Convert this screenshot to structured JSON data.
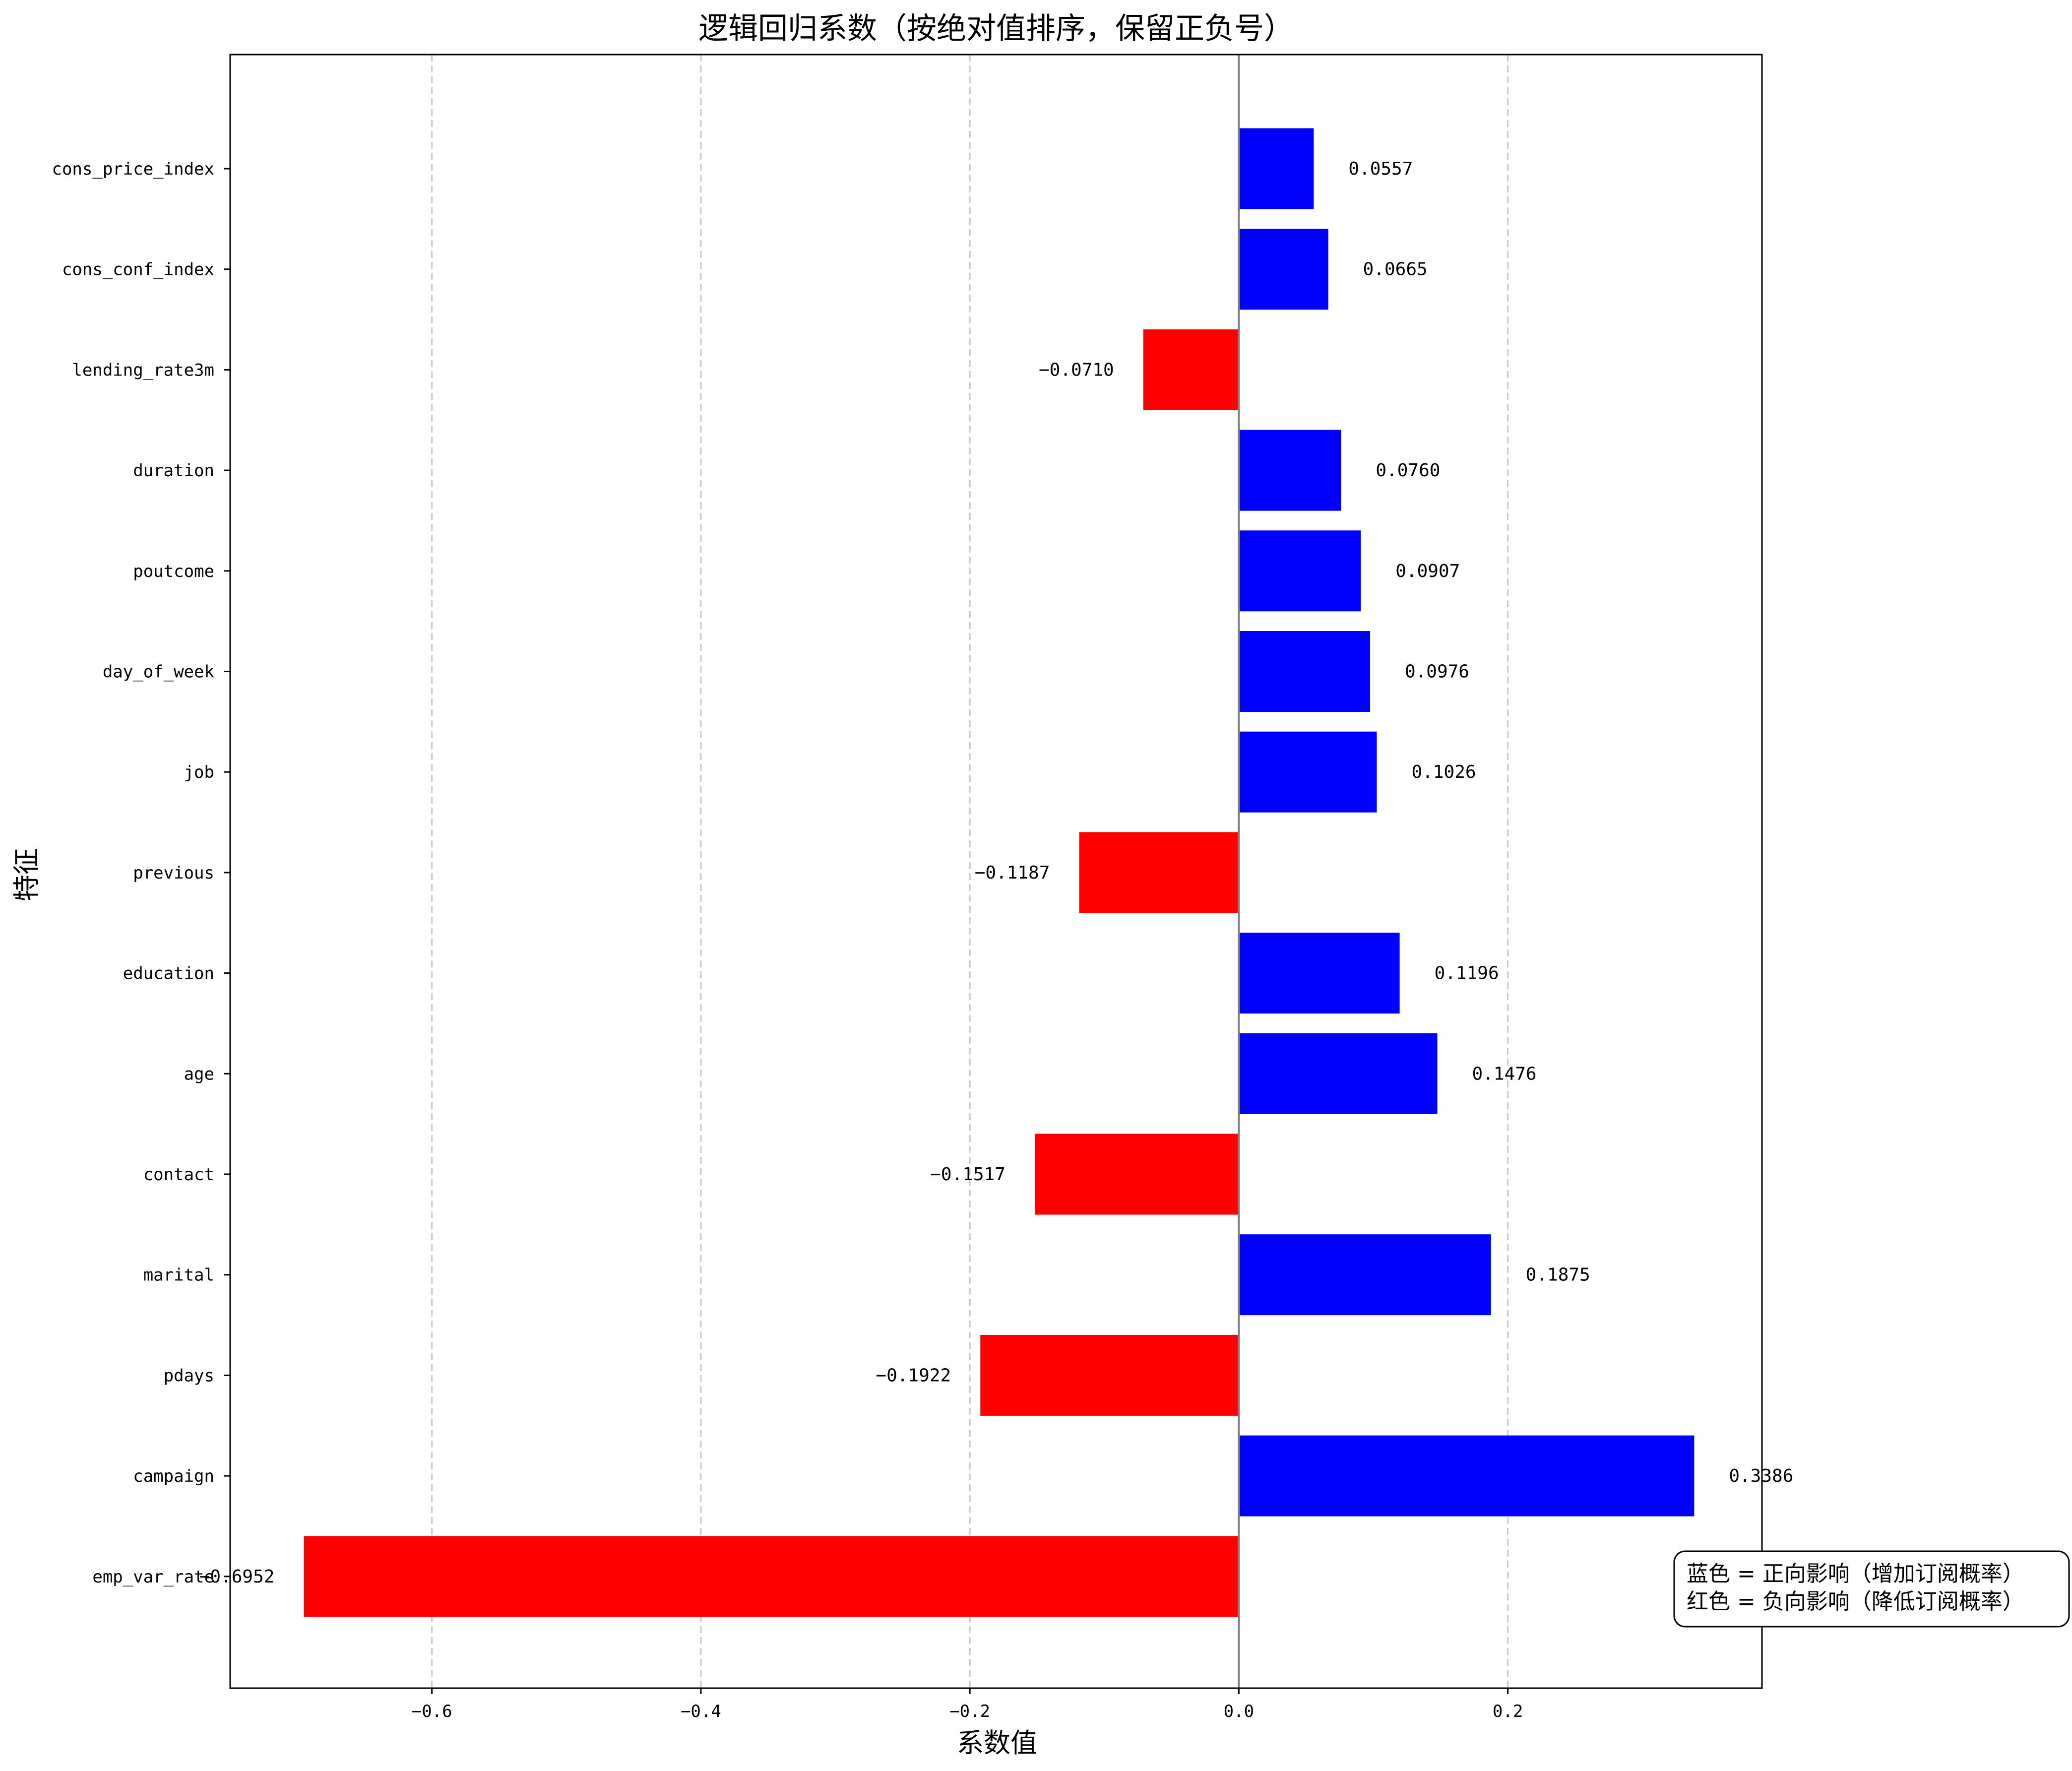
{
  "chart_data": {
    "type": "bar",
    "orientation": "horizontal",
    "title": "逻辑回归系数（按绝对值排序，保留正负号）",
    "xlabel": "系数值",
    "ylabel": "特征",
    "xlim": [
      -0.75,
      0.389
    ],
    "xticks": [
      -0.6,
      -0.4,
      -0.2,
      0.0,
      0.2
    ],
    "xtick_labels": [
      "−0.6",
      "−0.4",
      "−0.2",
      "0.0",
      "0.2"
    ],
    "grid": "x-dashed",
    "colors": {
      "positive": "#0000ff",
      "negative": "#ff0000",
      "zero_line": "#808080",
      "grid": "#c8c8c8"
    },
    "categories": [
      "cons_price_index",
      "cons_conf_index",
      "lending_rate3m",
      "duration",
      "poutcome",
      "day_of_week",
      "job",
      "previous",
      "education",
      "age",
      "contact",
      "marital",
      "pdays",
      "campaign",
      "emp_var_rate"
    ],
    "values": [
      0.0557,
      0.0665,
      -0.071,
      0.076,
      0.0907,
      0.0976,
      0.1026,
      -0.1187,
      0.1196,
      0.1476,
      -0.1517,
      0.1875,
      -0.1922,
      0.3386,
      -0.6952
    ],
    "value_labels": [
      "0.0557",
      "0.0665",
      "−0.0710",
      "0.0760",
      "0.0907",
      "0.0976",
      "0.1026",
      "−0.1187",
      "0.1196",
      "0.1476",
      "−0.1517",
      "0.1875",
      "−0.1922",
      "0.3386",
      "−0.6952"
    ],
    "legend": {
      "placement": "lower-right",
      "lines": [
        "蓝色 = 正向影响（增加订阅概率）",
        "红色 = 负向影响（降低订阅概率）"
      ]
    }
  }
}
